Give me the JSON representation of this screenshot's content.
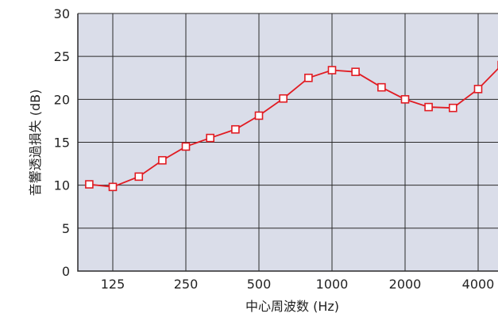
{
  "chart_data": {
    "type": "line",
    "title": "",
    "xlabel": "中心周波数 (Hz)",
    "ylabel": "音響透過損失 (dB)",
    "ylim": [
      0,
      30
    ],
    "yticks": [
      "0",
      "5",
      "10",
      "15",
      "20",
      "25",
      "30"
    ],
    "xticks": [
      "125",
      "250",
      "500",
      "1000",
      "2000",
      "4000"
    ],
    "x": [
      100,
      125,
      160,
      200,
      250,
      315,
      400,
      500,
      630,
      800,
      1000,
      1250,
      1600,
      2000,
      2500,
      3150,
      4000,
      5000
    ],
    "series": [
      {
        "values": [
          10.1,
          9.8,
          11.0,
          12.9,
          14.5,
          15.5,
          16.5,
          18.1,
          20.1,
          22.5,
          23.4,
          23.2,
          21.4,
          20.0,
          19.1,
          19.0,
          21.2,
          24.0
        ]
      }
    ],
    "grid": true,
    "colors": {
      "plot_bg": "#dadde9",
      "line": "#e11b22",
      "grid": "#2a2a2a"
    }
  }
}
